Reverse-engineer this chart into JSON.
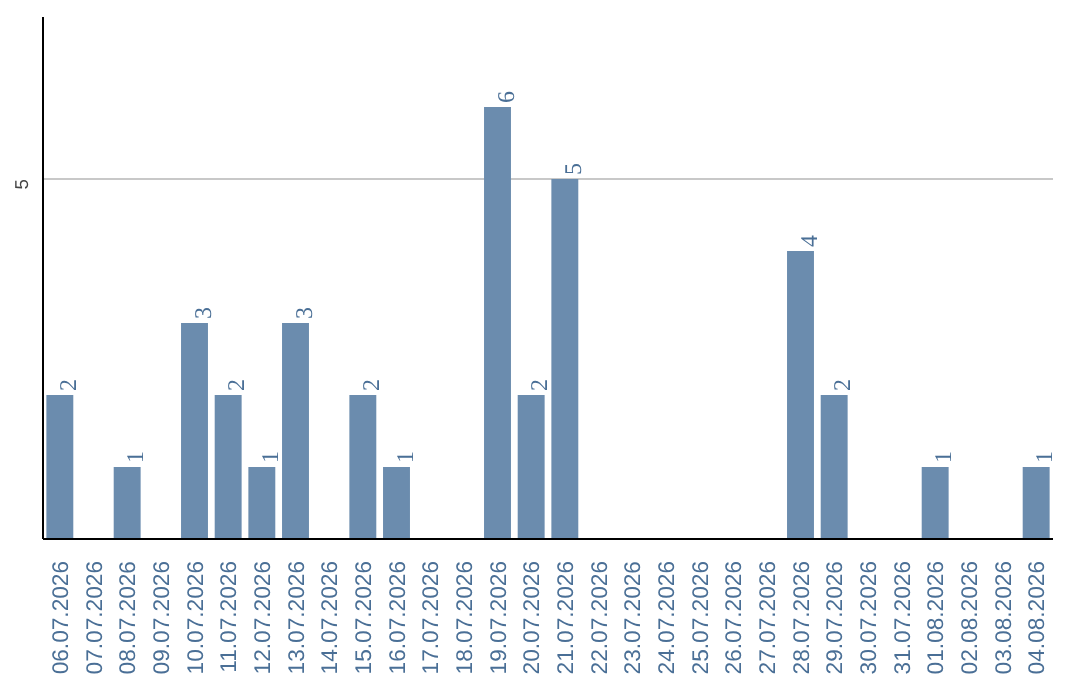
{
  "chart_data": {
    "type": "bar",
    "categories": [
      "06.07.2026",
      "07.07.2026",
      "08.07.2026",
      "09.07.2026",
      "10.07.2026",
      "11.07.2026",
      "12.07.2026",
      "13.07.2026",
      "14.07.2026",
      "15.07.2026",
      "16.07.2026",
      "17.07.2026",
      "18.07.2026",
      "19.07.2026",
      "20.07.2026",
      "21.07.2026",
      "22.07.2026",
      "23.07.2026",
      "24.07.2026",
      "25.07.2026",
      "26.07.2026",
      "27.07.2026",
      "28.07.2026",
      "29.07.2026",
      "30.07.2026",
      "31.07.2026",
      "01.08.2026",
      "02.08.2026",
      "03.08.2026",
      "04.08.2026"
    ],
    "values": [
      2,
      0,
      1,
      0,
      3,
      2,
      1,
      3,
      0,
      2,
      1,
      0,
      0,
      6,
      2,
      5,
      0,
      0,
      0,
      0,
      0,
      0,
      4,
      2,
      0,
      0,
      1,
      0,
      0,
      1
    ],
    "value_labels": [
      "2",
      null,
      "1",
      null,
      "3",
      "2",
      "1",
      "3",
      null,
      "2",
      "1",
      null,
      null,
      "6",
      "2",
      "5",
      null,
      null,
      null,
      null,
      null,
      null,
      "4",
      "2",
      null,
      null,
      "1",
      null,
      null,
      "1"
    ],
    "color": "#6b8cae",
    "ylim": [
      0,
      7.25
    ],
    "yticks": [
      5
    ],
    "grid": "y"
  }
}
